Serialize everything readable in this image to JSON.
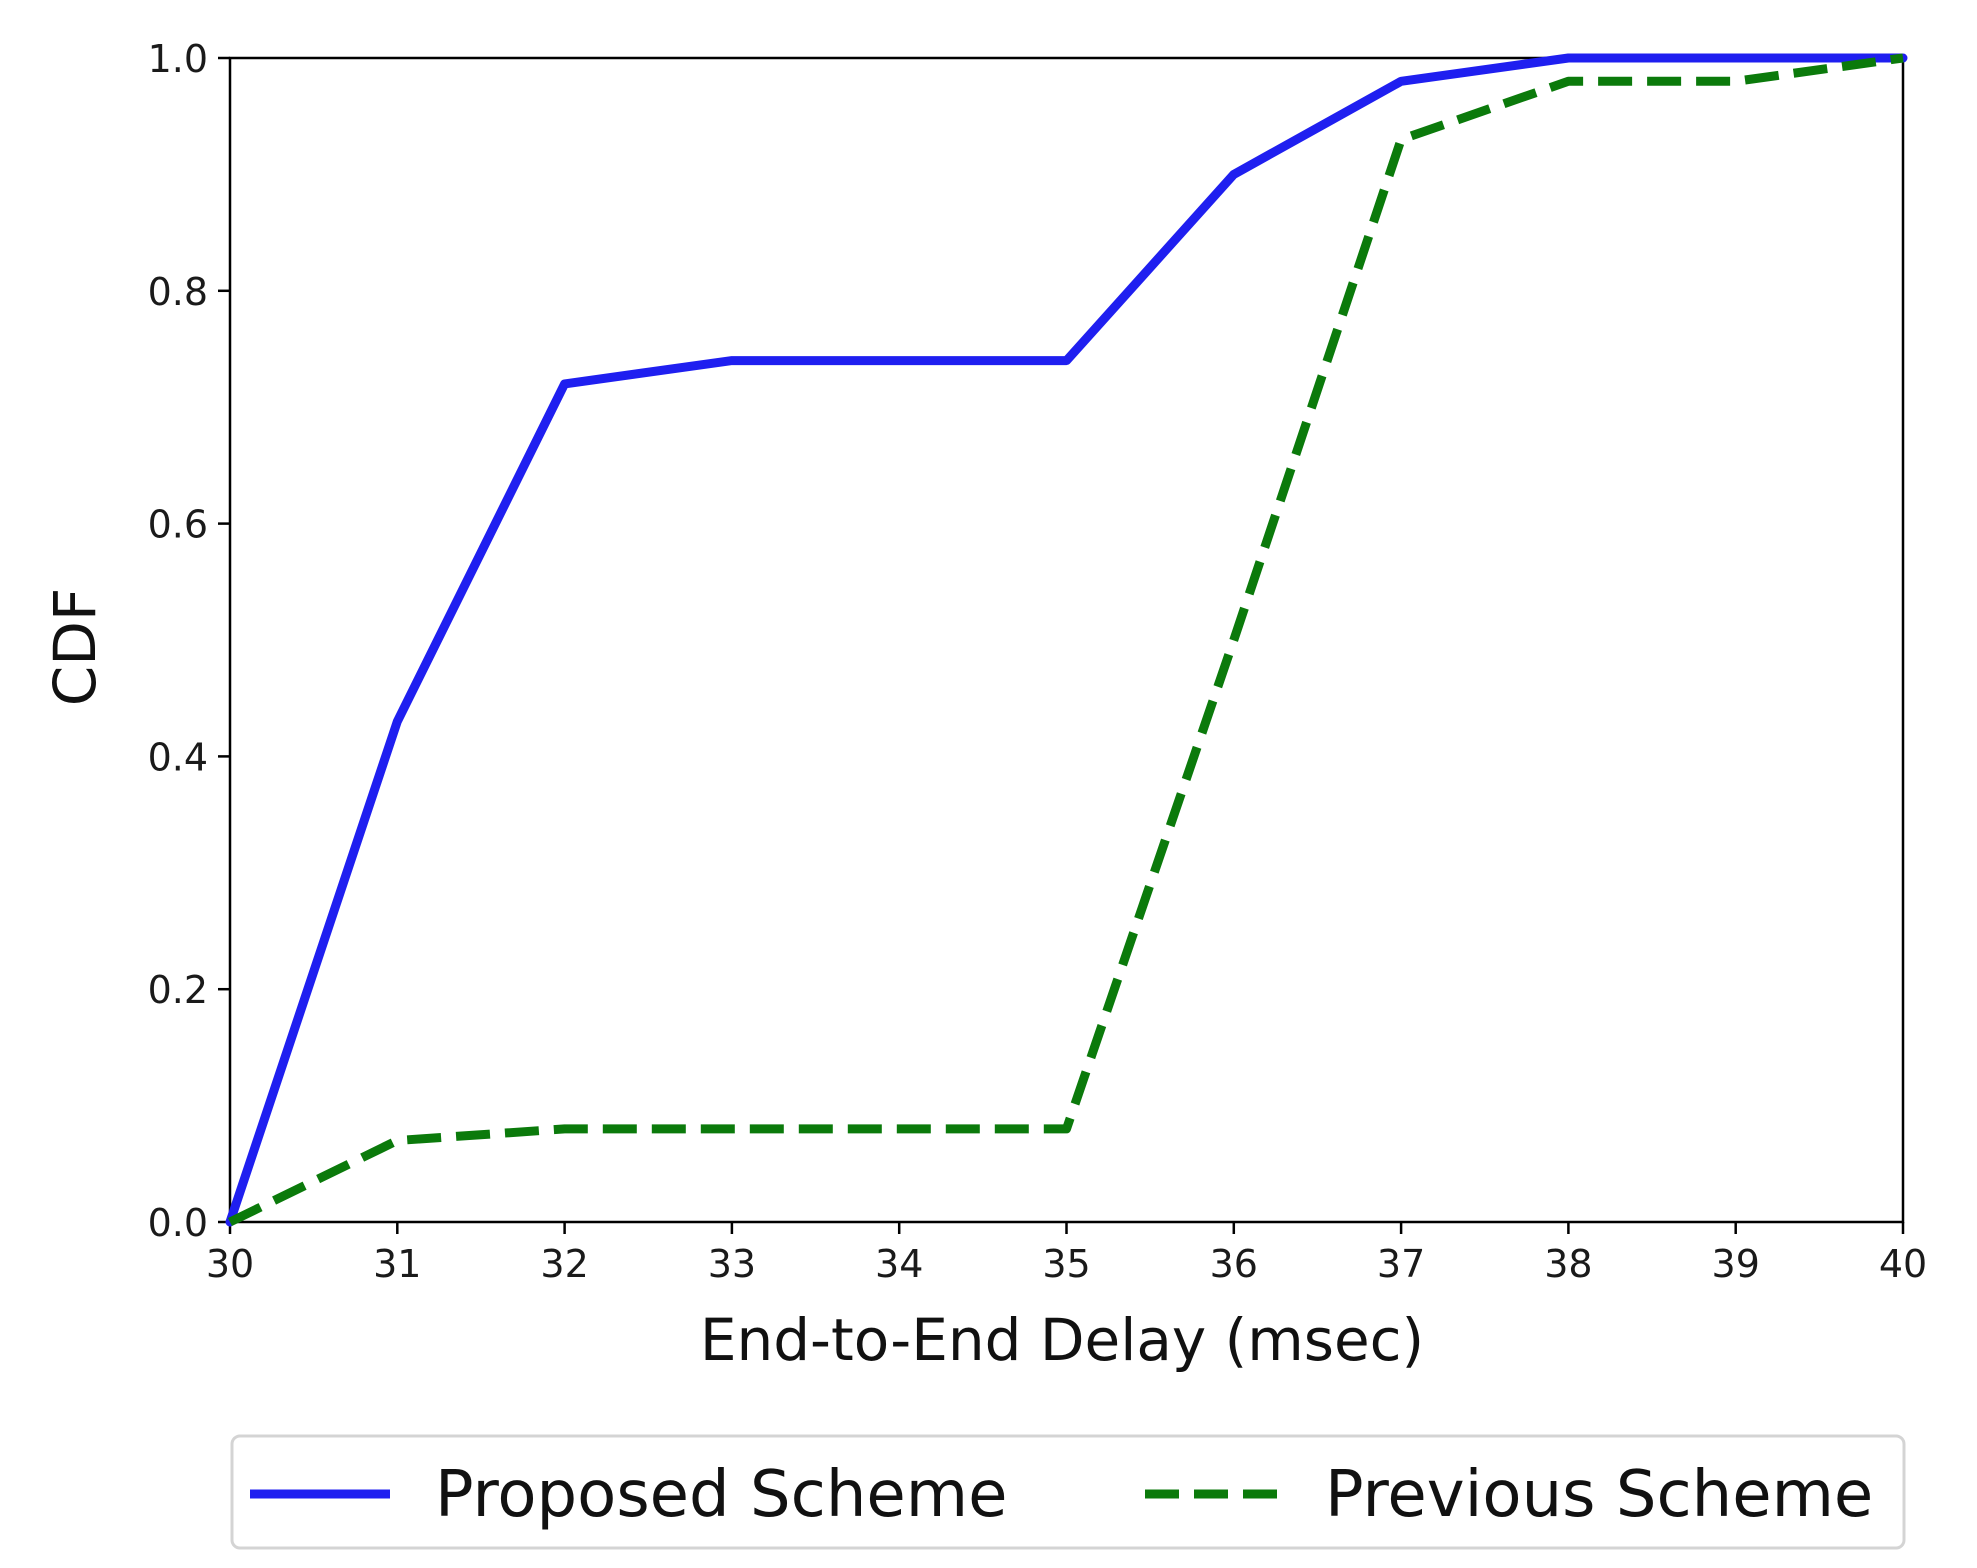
{
  "chart_data": {
    "type": "line",
    "xlabel": "End-to-End Delay (msec)",
    "ylabel": "CDF",
    "xlim": [
      30,
      40
    ],
    "ylim": [
      0.0,
      1.0
    ],
    "xticks": [
      "30",
      "31",
      "32",
      "33",
      "34",
      "35",
      "36",
      "37",
      "38",
      "39",
      "40"
    ],
    "yticks": [
      "0.0",
      "0.2",
      "0.4",
      "0.6",
      "0.8",
      "1.0"
    ],
    "grid": false,
    "legend_position": "bottom-center",
    "x": [
      30,
      31,
      32,
      33,
      34,
      35,
      36,
      37,
      38,
      39,
      40
    ],
    "series": [
      {
        "name": "Proposed Scheme",
        "values": [
          0.0,
          0.43,
          0.72,
          0.74,
          0.74,
          0.74,
          0.9,
          0.98,
          1.0,
          1.0,
          1.0
        ],
        "color": "#1f1ff0",
        "style": "solid"
      },
      {
        "name": "Previous Scheme",
        "values": [
          0.0,
          0.07,
          0.08,
          0.08,
          0.08,
          0.08,
          0.5,
          0.93,
          0.98,
          0.98,
          1.0
        ],
        "color": "#0b7a0b",
        "style": "dashed"
      }
    ]
  }
}
